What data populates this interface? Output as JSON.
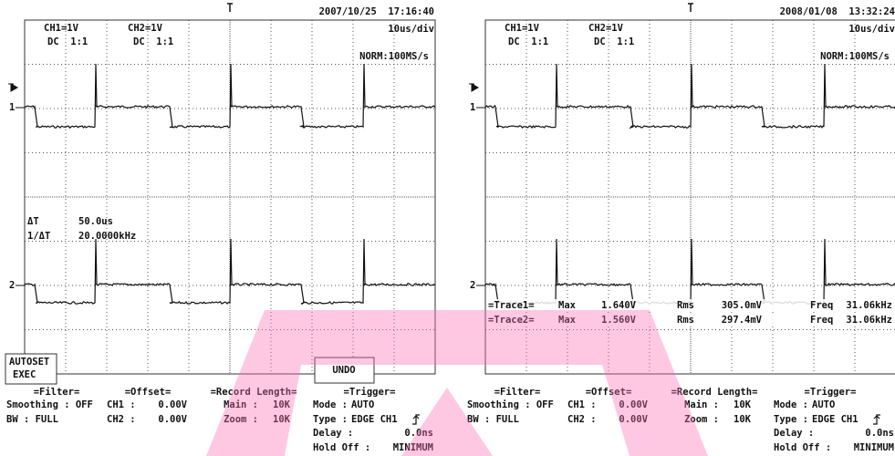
{
  "screens": [
    {
      "timestamp": "2007/10/25  17:16:40",
      "ch1": "CH1=1V",
      "ch1_coupling": "DC  1:1",
      "ch2": "CH2=1V",
      "ch2_coupling": "DC  1:1",
      "timebase": "10us/div",
      "sample_rate": "NORM:100MS/s",
      "ground_markers": [
        "1",
        "2"
      ],
      "cursors": [
        {
          "label": "ΔT",
          "value": "50.0us"
        },
        {
          "label": "1/ΔT",
          "value": "20.0000kHz"
        }
      ],
      "traces": [],
      "buttons": {
        "autoset": "AUTOSET",
        "exec": "EXEC",
        "undo": "UNDO"
      },
      "panel": {
        "filter": {
          "title": "=Filter=",
          "rows": [
            "Smoothing : OFF",
            "BW : FULL"
          ]
        },
        "offset": {
          "title": "=Offset=",
          "rows": [
            {
              "label": "CH1 :",
              "value": "0.00V"
            },
            {
              "label": "CH2 :",
              "value": "0.00V"
            }
          ]
        },
        "record": {
          "title": "=Record Length=",
          "rows": [
            {
              "label": "Main :",
              "value": "10K"
            },
            {
              "label": "Zoom :",
              "value": "10K"
            }
          ]
        },
        "trigger": {
          "title": "=Trigger=",
          "rows": [
            {
              "label": "Mode :",
              "value": "AUTO"
            },
            {
              "label": "Type :",
              "value": "EDGE CH1"
            },
            {
              "label": "Delay :",
              "value": "0.0ns"
            },
            {
              "label": "Hold Off :",
              "value": "MINIMUM"
            }
          ]
        }
      }
    },
    {
      "timestamp": "2008/01/08  13:32:24",
      "ch1": "CH1=1V",
      "ch1_coupling": "DC  1:1",
      "ch2": "CH2=1V",
      "ch2_coupling": "DC  1:1",
      "timebase": "10us/div",
      "sample_rate": "NORM:100MS/s",
      "ground_markers": [
        "1",
        "2"
      ],
      "cursors": [],
      "traces": [
        {
          "name": "=Trace1=",
          "max_label": "Max",
          "max": "1.640V",
          "rms_label": "Rms",
          "rms": "305.0mV",
          "freq_label": "Freq",
          "freq": "31.06kHz"
        },
        {
          "name": "=Trace2=",
          "max_label": "Max",
          "max": "1.560V",
          "rms_label": "Rms",
          "rms": "297.4mV",
          "freq_label": "Freq",
          "freq": "31.06kHz"
        }
      ],
      "panel": {
        "filter": {
          "title": "=Filter=",
          "rows": [
            "Smoothing : OFF",
            "BW : FULL"
          ]
        },
        "offset": {
          "title": "=Offset=",
          "rows": [
            {
              "label": "CH1 :",
              "value": "0.00V"
            },
            {
              "label": "CH2 :",
              "value": "0.00V"
            }
          ]
        },
        "record": {
          "title": "=Record Length=",
          "rows": [
            {
              "label": "Main :",
              "value": "10K"
            },
            {
              "label": "Zoom :",
              "value": "10K"
            }
          ]
        },
        "trigger": {
          "title": "=Trigger=",
          "rows": [
            {
              "label": "Mode :",
              "value": "AUTO"
            },
            {
              "label": "Type :",
              "value": "EDGE CH1"
            },
            {
              "label": "Delay :",
              "value": "0.0ns"
            },
            {
              "label": "Hold Off :",
              "value": "MINIMUM"
            }
          ]
        }
      }
    }
  ]
}
